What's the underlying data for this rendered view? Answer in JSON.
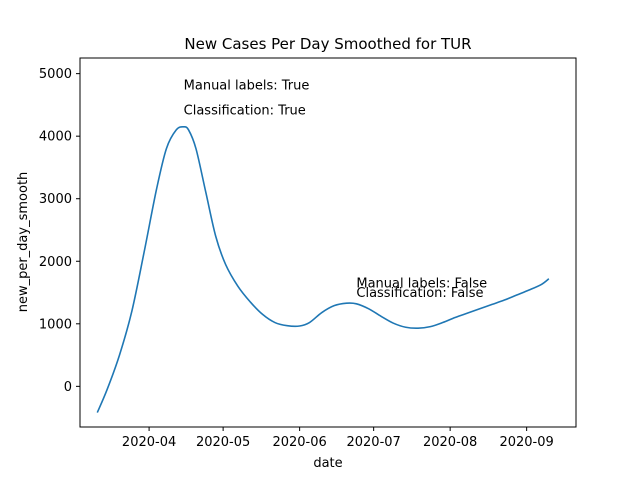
{
  "chart_data": {
    "type": "line",
    "title": "New Cases Per Day Smoothed for TUR",
    "xlabel": "date",
    "ylabel": "new_per_day_smooth",
    "ylim": [
      -650,
      5250
    ],
    "xlim": [
      "2020-03-04",
      "2020-09-21"
    ],
    "xticks": [
      "2020-04",
      "2020-05",
      "2020-06",
      "2020-07",
      "2020-08",
      "2020-09"
    ],
    "xtick_dates": [
      "2020-04-01",
      "2020-05-01",
      "2020-06-01",
      "2020-07-01",
      "2020-08-01",
      "2020-09-01"
    ],
    "yticks": [
      0,
      1000,
      2000,
      3000,
      4000,
      5000
    ],
    "ytick_labels": [
      "0",
      "1000",
      "2000",
      "3000",
      "4000",
      "5000"
    ],
    "grid": false,
    "color": "#1f77b4",
    "series": [
      {
        "x": [
          "2020-03-11",
          "2020-03-15",
          "2020-03-20",
          "2020-03-25",
          "2020-03-30",
          "2020-04-04",
          "2020-04-08",
          "2020-04-12",
          "2020-04-15",
          "2020-04-17",
          "2020-04-20",
          "2020-04-24",
          "2020-04-28",
          "2020-05-02",
          "2020-05-07",
          "2020-05-12",
          "2020-05-17",
          "2020-05-22",
          "2020-05-27",
          "2020-06-01",
          "2020-06-05",
          "2020-06-10",
          "2020-06-15",
          "2020-06-20",
          "2020-06-24",
          "2020-06-29",
          "2020-07-04",
          "2020-07-09",
          "2020-07-14",
          "2020-07-19",
          "2020-07-24",
          "2020-07-29",
          "2020-08-03",
          "2020-08-08",
          "2020-08-13",
          "2020-08-18",
          "2020-08-23",
          "2020-08-28",
          "2020-09-02",
          "2020-09-07",
          "2020-09-10"
        ],
        "y": [
          -420,
          -50,
          500,
          1200,
          2150,
          3150,
          3800,
          4100,
          4150,
          4100,
          3800,
          3100,
          2400,
          1950,
          1600,
          1350,
          1150,
          1020,
          970,
          965,
          1020,
          1180,
          1290,
          1330,
          1320,
          1240,
          1120,
          1010,
          945,
          930,
          955,
          1020,
          1100,
          1170,
          1240,
          1310,
          1380,
          1460,
          1540,
          1630,
          1720
        ]
      }
    ],
    "annotations": [
      {
        "text": "Manual labels: True",
        "x": "2020-04-15",
        "y": 4750
      },
      {
        "text": "Classification: True",
        "x": "2020-04-15",
        "y": 4350
      },
      {
        "text": "Manual labels: False",
        "x": "2020-06-24",
        "y": 1580
      },
      {
        "text": "Classification: False",
        "x": "2020-06-24",
        "y": 1430
      }
    ]
  }
}
